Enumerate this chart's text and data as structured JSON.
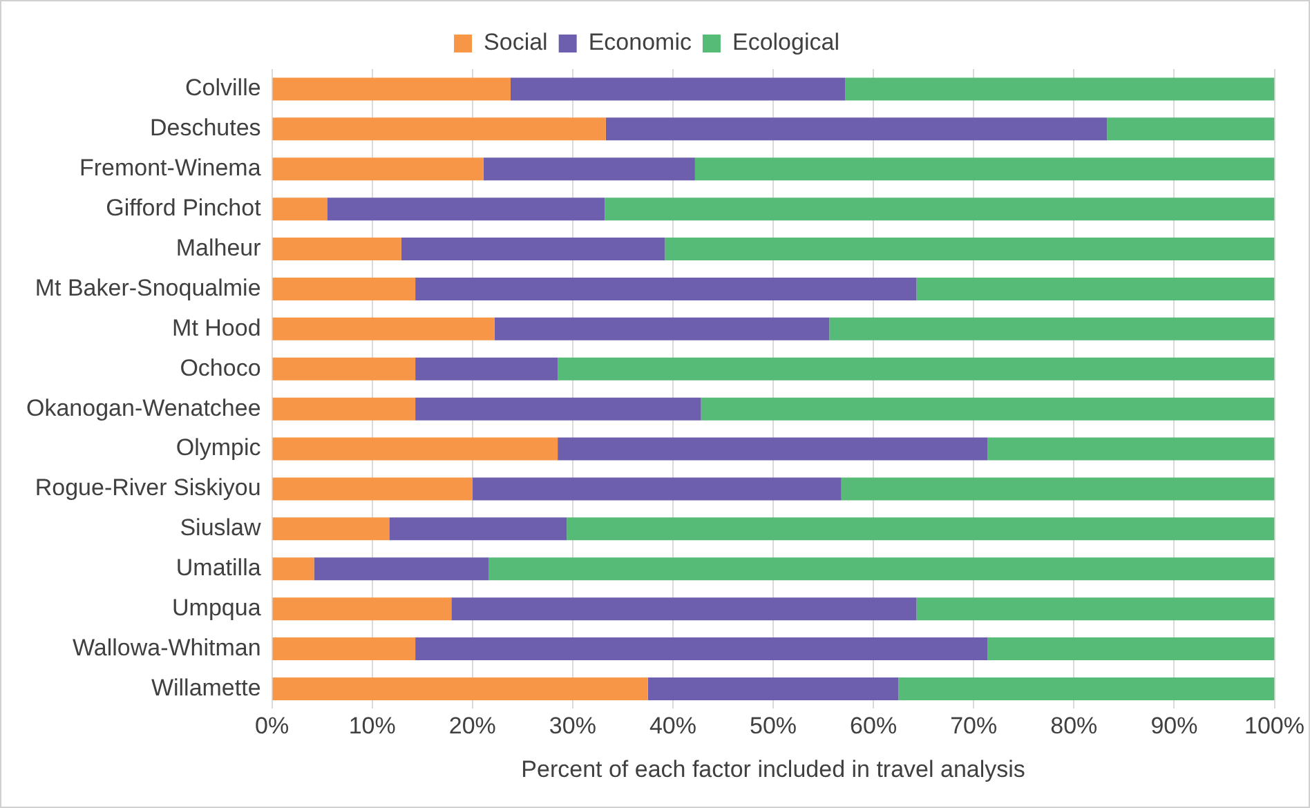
{
  "chart_data": {
    "type": "bar",
    "orientation": "horizontal",
    "stacked": true,
    "xlabel": "Percent of each factor included in travel analysis",
    "categories": [
      "Colville",
      "Deschutes",
      "Fremont-Winema",
      "Gifford Pinchot",
      "Malheur",
      "Mt Baker-Snoqualmie",
      "Mt Hood",
      "Ochoco",
      "Okanogan-Wenatchee",
      "Olympic",
      "Rogue-River Siskiyou",
      "Siuslaw",
      "Umatilla",
      "Umpqua",
      "Wallowa-Whitman",
      "Willamette"
    ],
    "series": [
      {
        "name": "Social",
        "color": "#f79646",
        "values": [
          23.8,
          33.3,
          21.1,
          5.5,
          12.9,
          14.3,
          22.2,
          14.3,
          14.3,
          28.5,
          20,
          11.7,
          4.2,
          17.9,
          14.3,
          37.5
        ]
      },
      {
        "name": "Economic",
        "color": "#6d5fad",
        "values": [
          33.4,
          50,
          21.1,
          27.7,
          26.3,
          50,
          33.4,
          14.2,
          28.5,
          42.9,
          36.8,
          17.7,
          17.4,
          46.4,
          57.1,
          25
        ]
      },
      {
        "name": "Ecological",
        "color": "#57bb78",
        "values": [
          42.8,
          16.7,
          57.8,
          66.8,
          60.8,
          35.7,
          44.4,
          71.5,
          57.2,
          28.6,
          43.2,
          70.6,
          78.4,
          35.7,
          28.6,
          37.5
        ]
      }
    ],
    "xlim": [
      0,
      100
    ],
    "xticks": [
      {
        "value": 0,
        "label": "0%"
      },
      {
        "value": 10,
        "label": "10%"
      },
      {
        "value": 20,
        "label": "20%"
      },
      {
        "value": 30,
        "label": "30%"
      },
      {
        "value": 40,
        "label": "40%"
      },
      {
        "value": 50,
        "label": "50%"
      },
      {
        "value": 60,
        "label": "60%"
      },
      {
        "value": 70,
        "label": "70%"
      },
      {
        "value": 80,
        "label": "80%"
      },
      {
        "value": 90,
        "label": "90%"
      },
      {
        "value": 100,
        "label": "100%"
      }
    ],
    "grid": "x",
    "legend": "top"
  }
}
